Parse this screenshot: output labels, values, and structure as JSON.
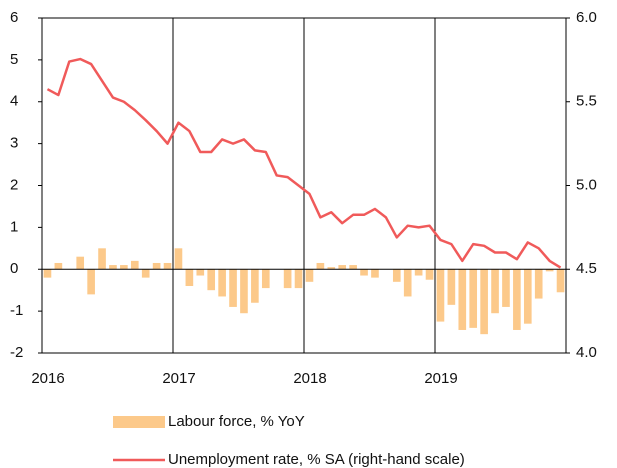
{
  "chart_data": {
    "type": "bar",
    "categories": [
      "2016",
      null,
      null,
      null,
      null,
      null,
      null,
      null,
      null,
      null,
      null,
      null,
      "2017",
      null,
      null,
      null,
      null,
      null,
      null,
      null,
      null,
      null,
      null,
      null,
      "2018",
      null,
      null,
      null,
      null,
      null,
      null,
      null,
      null,
      null,
      null,
      null,
      "2019",
      null,
      null,
      null,
      null,
      null,
      null,
      null,
      null,
      null,
      null,
      null
    ],
    "ylim": [
      -2,
      6
    ],
    "yticks": [
      -2,
      -1,
      0,
      1,
      2,
      3,
      4,
      5,
      6
    ],
    "y2lim": [
      4,
      6
    ],
    "y2ticks": [
      {
        "value": 4,
        "label": "4.0"
      },
      4.5,
      {
        "value": 5,
        "label": "5.0"
      },
      5.5,
      {
        "value": 6,
        "label": "6.0"
      }
    ],
    "series": [
      {
        "name": "Labour force, % YoY",
        "type": "bar",
        "color": "#fcc98a",
        "values": [
          -0.2,
          0.15,
          0,
          0.3,
          -0.6,
          0.5,
          0.1,
          0.1,
          0.2,
          -0.2,
          0.15,
          0.15,
          0.5,
          -0.4,
          -0.15,
          -0.5,
          -0.65,
          -0.9,
          -1.05,
          -0.8,
          -0.45,
          0,
          -0.45,
          -0.45,
          -0.3,
          0.15,
          0.05,
          0.1,
          0.1,
          -0.15,
          -0.2,
          0,
          -0.3,
          -0.65,
          -0.15,
          -0.25,
          -1.25,
          -0.85,
          -1.45,
          -1.4,
          -1.55,
          -1.05,
          -0.9,
          -1.45,
          -1.3,
          -0.7,
          -0.05,
          -0.55
        ]
      },
      {
        "name": "Unemployment rate, % SA (right-hand scale)",
        "type": "line",
        "axis": "y2",
        "color": "#f05a5a",
        "values": [
          5.575,
          5.54,
          5.74,
          5.755,
          5.725,
          5.625,
          5.525,
          5.5,
          5.45,
          5.39,
          5.325,
          5.25,
          5.375,
          5.325,
          5.2,
          5.2,
          5.275,
          5.25,
          5.275,
          5.21,
          5.2,
          5.06,
          5.05,
          5.0,
          4.95,
          4.81,
          4.84,
          4.775,
          4.825,
          4.825,
          4.86,
          4.81,
          4.69,
          4.76,
          4.75,
          4.76,
          4.675,
          4.65,
          4.55,
          4.65,
          4.64,
          4.6,
          4.6,
          4.56,
          4.66,
          4.625,
          4.55,
          4.51
        ]
      }
    ],
    "legend": "bottom"
  }
}
